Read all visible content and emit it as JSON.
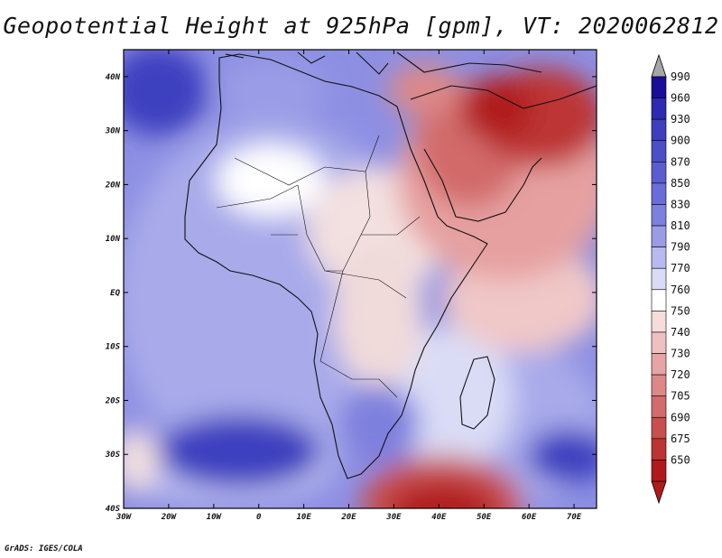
{
  "title": "Geopotential Height at 925hPa [gpm], VT: 2020062812",
  "footer": "GrADS: IGES/COLA",
  "map": {
    "variable": "Geopotential Height",
    "level": "925hPa",
    "units": "gpm",
    "valid_time": "2020062812",
    "lat_labels": [
      "40N",
      "30N",
      "20N",
      "10N",
      "EQ",
      "10S",
      "20S",
      "30S",
      "40S"
    ],
    "lon_labels": [
      "30W",
      "20W",
      "10W",
      "0",
      "10E",
      "20E",
      "30E",
      "40E",
      "50E",
      "60E",
      "70E"
    ]
  },
  "colorbar": {
    "levels": [
      "990",
      "960",
      "930",
      "900",
      "870",
      "850",
      "830",
      "810",
      "790",
      "770",
      "760",
      "750",
      "740",
      "730",
      "720",
      "705",
      "690",
      "675",
      "650"
    ],
    "colors": {
      "top_arrow": "#a6a6a6",
      "bottom_arrow": "#b11a1a",
      "bands": [
        "#1a0d9a",
        "#2e29b3",
        "#3d3fbf",
        "#4b4ec7",
        "#5a5dcf",
        "#6a6dd7",
        "#7e80de",
        "#9a9ce6",
        "#b8b9ee",
        "#dadcf6",
        "#ffffff",
        "#f7dcdc",
        "#efc0c0",
        "#e6a4a4",
        "#dc8888",
        "#d26b6b",
        "#c84f4f",
        "#bd3434",
        "#b11a1a"
      ]
    }
  }
}
